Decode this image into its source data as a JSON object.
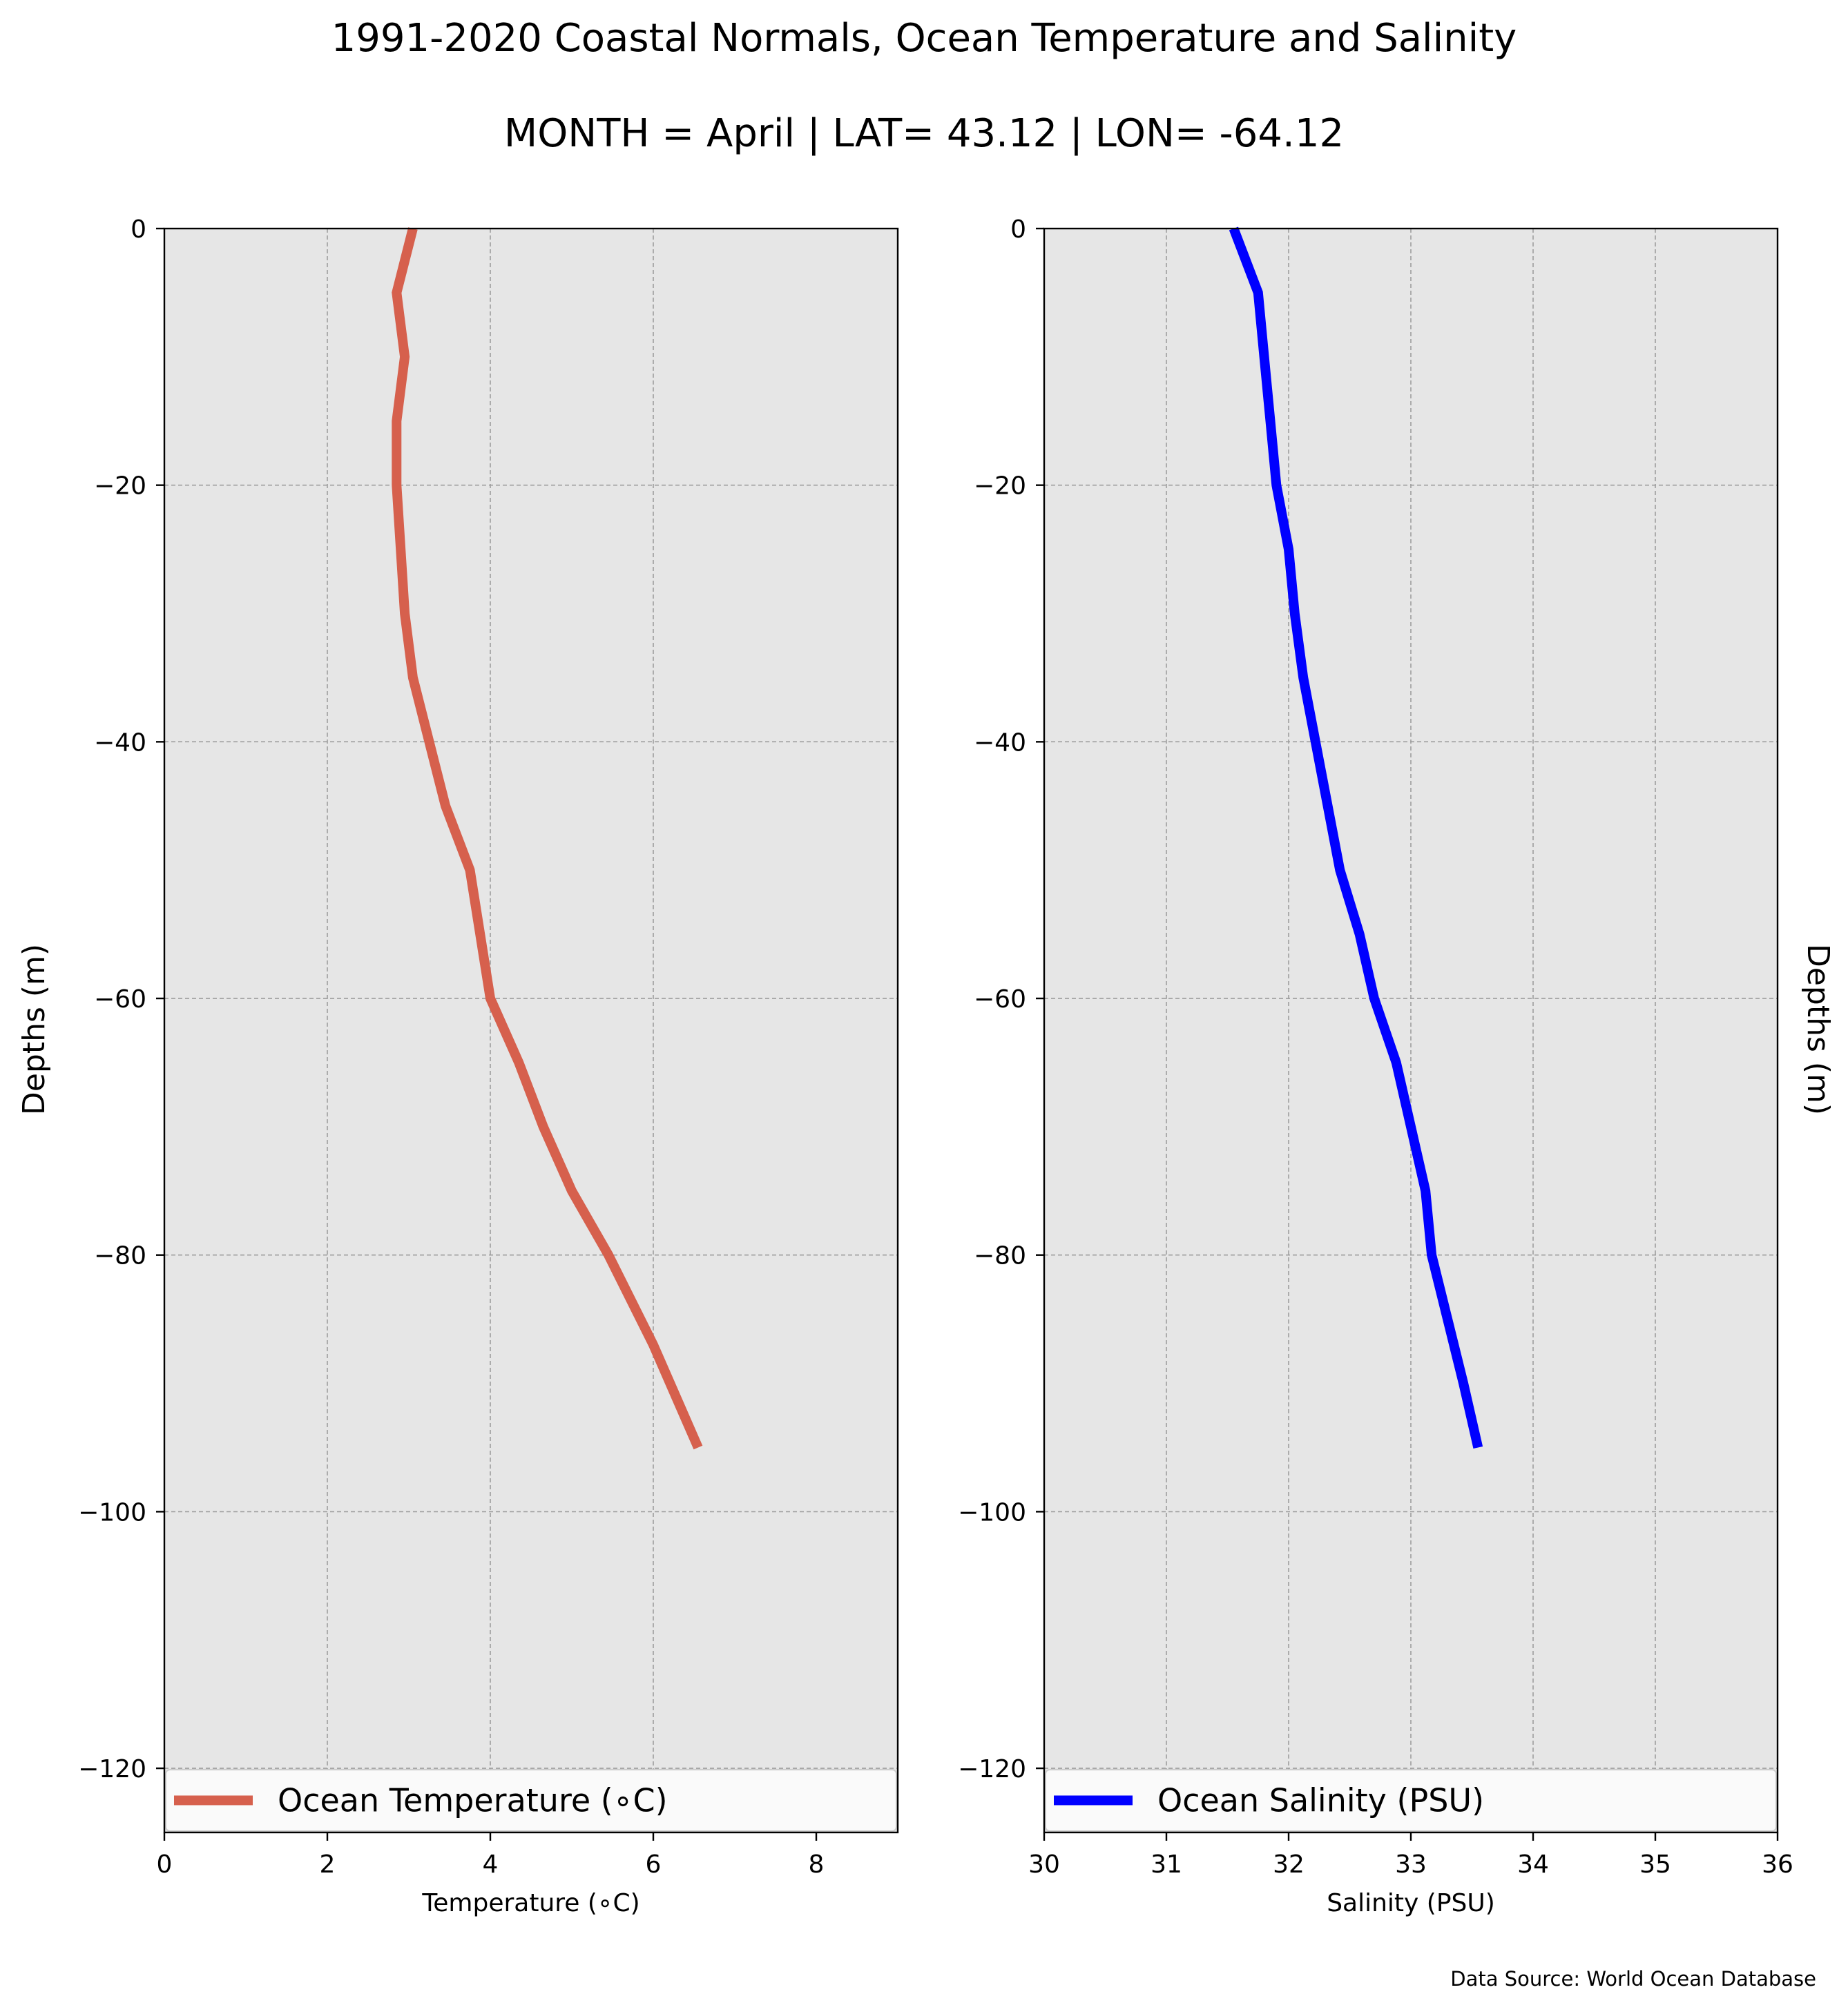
{
  "figure": {
    "title": "1991-2020 Coastal Normals, Ocean Temperature and Salinity",
    "subtitle": "MONTH = April | LAT= 43.12 | LON= -64.12",
    "source": "Data Source: World Ocean Database",
    "plot_background": "#e6e6e6",
    "grid_color": "#9e9e9e"
  },
  "chart_data": [
    {
      "type": "line",
      "xlabel": "Temperature ($^\\circ$C)",
      "xlabel_display": "Temperature (∘C)",
      "ylabel": "Depths (m)",
      "xlim": [
        0,
        9
      ],
      "ylim": [
        -125,
        0
      ],
      "xticks": [
        0,
        2,
        4,
        6,
        8
      ],
      "yticks": [
        0,
        -20,
        -40,
        -60,
        -80,
        -100,
        -120
      ],
      "xtick_labels": [
        "0",
        "2",
        "4",
        "6",
        "8"
      ],
      "ytick_labels": [
        "0",
        "−20",
        "−40",
        "−60",
        "−80",
        "−100",
        "−120"
      ],
      "grid": true,
      "legend_position": "bottom",
      "series": [
        {
          "name": "Ocean Temperature (∘C)",
          "color": "#d6604d",
          "x": [
            3.05,
            2.85,
            2.95,
            2.85,
            2.85,
            2.9,
            2.95,
            3.05,
            3.25,
            3.45,
            3.75,
            4.0,
            4.35,
            4.65,
            5.0,
            5.45,
            6.0,
            6.55
          ],
          "y": [
            0,
            -5,
            -10,
            -15,
            -20,
            -25,
            -30,
            -35,
            -40,
            -45,
            -50,
            -60,
            -65,
            -70,
            -75,
            -80,
            -87,
            -95
          ]
        }
      ]
    },
    {
      "type": "line",
      "xlabel": "Salinity (PSU)",
      "ylabel": "Depths (m)",
      "ylabel_side": "right",
      "xlim": [
        30,
        36
      ],
      "ylim": [
        -125,
        0
      ],
      "xticks": [
        30,
        31,
        32,
        33,
        34,
        35,
        36
      ],
      "yticks": [
        0,
        -20,
        -40,
        -60,
        -80,
        -100,
        -120
      ],
      "xtick_labels": [
        "30",
        "31",
        "32",
        "33",
        "34",
        "35",
        "36"
      ],
      "ytick_labels": [
        "0",
        "−20",
        "−40",
        "−60",
        "−80",
        "−100",
        "−120"
      ],
      "grid": true,
      "legend_position": "bottom",
      "series": [
        {
          "name": "Ocean Salinity (PSU)",
          "color": "#0000ff",
          "x": [
            31.55,
            31.75,
            31.8,
            31.85,
            31.9,
            32.0,
            32.05,
            32.12,
            32.22,
            32.32,
            32.42,
            32.58,
            32.7,
            32.88,
            33.0,
            33.12,
            33.17,
            33.3,
            33.43,
            33.55
          ],
          "y": [
            0,
            -5,
            -10,
            -15,
            -20,
            -25,
            -30,
            -35,
            -40,
            -45,
            -50,
            -55,
            -60,
            -65,
            -70,
            -75,
            -80,
            -85,
            -90,
            -95
          ]
        }
      ]
    }
  ]
}
